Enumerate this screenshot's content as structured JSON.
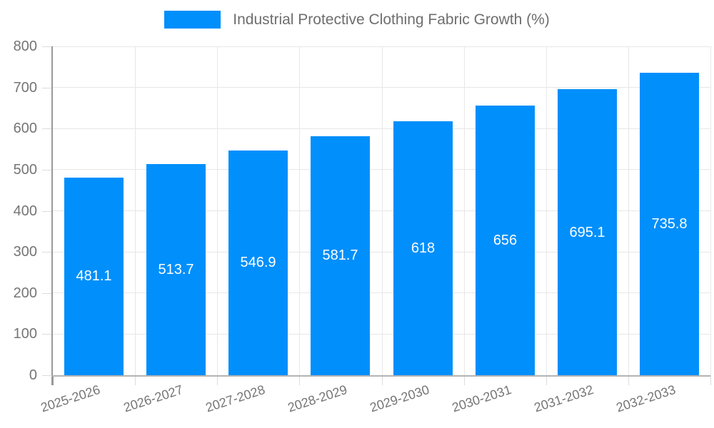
{
  "chart_data": {
    "type": "bar",
    "title": "Industrial Protective Clothing Fabric Growth (%)",
    "legend_entries": [
      "Industrial Protective Clothing Fabric Growth (%)"
    ],
    "legend_position": "top",
    "categories": [
      "2025-2026",
      "2026-2027",
      "2027-2028",
      "2028-2029",
      "2029-2030",
      "2030-2031",
      "2031-2032",
      "2032-2033"
    ],
    "values": [
      481.1,
      513.7,
      546.9,
      581.7,
      618,
      656,
      695.1,
      735.8
    ],
    "bar_labels": [
      "481.1",
      "513.7",
      "546.9",
      "581.7",
      "618",
      "656",
      "695.1",
      "735.8"
    ],
    "xlabel": "",
    "ylabel": "",
    "ylim": [
      0,
      800
    ],
    "ytick_labels": [
      "0",
      "100",
      "200",
      "300",
      "400",
      "500",
      "600",
      "700",
      "800"
    ],
    "yticks": [
      0,
      100,
      200,
      300,
      400,
      500,
      600,
      700,
      800
    ],
    "grid": true,
    "x_label_rotation": -18,
    "colors": {
      "bar": "#008FFB",
      "grid": "#e7e7e7",
      "tick": "#dcdcdc",
      "axis_y": "#999999",
      "axis_x": "#b3b3b3",
      "tick_label": "#757575",
      "bar_label": "#ffffff",
      "legend_text": "#6e6e6e",
      "background": "#ffffff"
    }
  }
}
